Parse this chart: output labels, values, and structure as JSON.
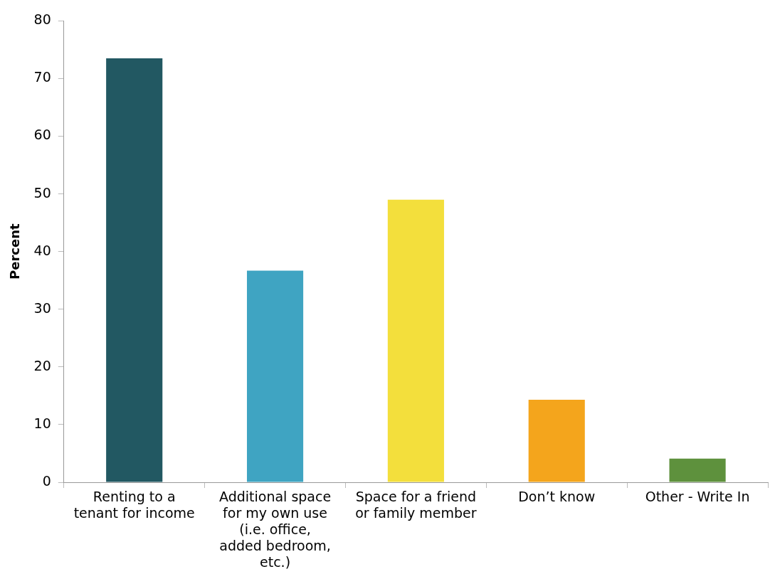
{
  "chart_data": {
    "type": "bar",
    "ylabel": "Percent",
    "categories": [
      "Renting to a tenant for income",
      "Additional space for my own use (i.e. office, added bedroom, etc.)",
      "Space for a friend or family member",
      "Don’t know",
      "Other - Write In"
    ],
    "values": [
      73.5,
      36.7,
      49.0,
      14.3,
      4.1
    ],
    "colors": [
      "#225862",
      "#3fa4c2",
      "#f3df3c",
      "#f4a51c",
      "#5e913d"
    ],
    "ylim": [
      0,
      80
    ],
    "yticks": [
      0,
      10,
      20,
      30,
      40,
      50,
      60,
      70,
      80
    ],
    "grid": false,
    "legend": false
  }
}
